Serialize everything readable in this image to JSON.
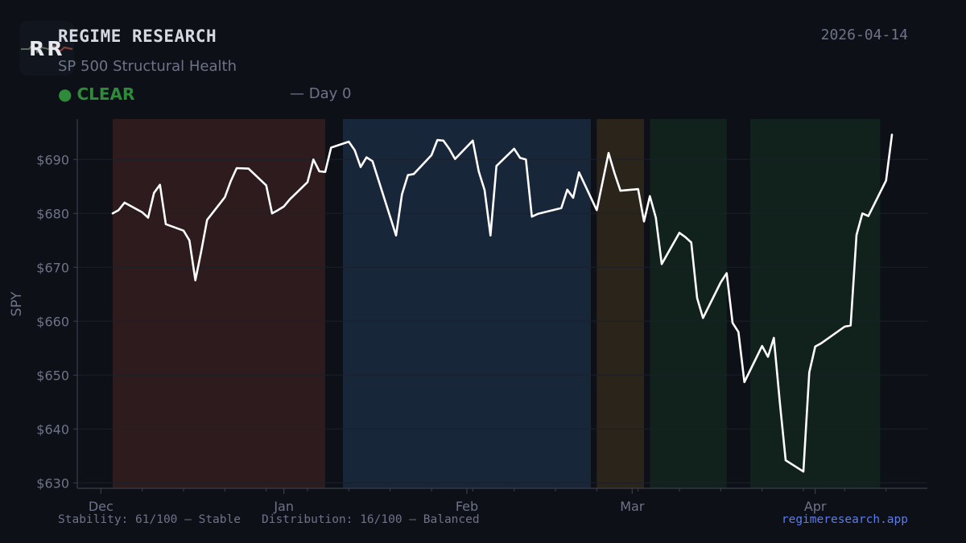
{
  "header": {
    "logo_text": "RR",
    "brand": "REGIME RESEARCH",
    "date": "2026-04-14",
    "subtitle": "SP 500 Structural Health",
    "status_dot": "●",
    "status_label": "CLEAR",
    "status_color": "#2e8b39",
    "day_info": "— Day 0"
  },
  "footer": {
    "stability": "Stability: 61/100 — Stable",
    "distribution": "Distribution: 16/100 — Balanced",
    "website": "regimeresearch.app"
  },
  "chart_data": {
    "type": "line",
    "ylabel": "SPY",
    "xlabel": "",
    "title": "",
    "ylim": [
      629,
      697.5
    ],
    "yticks": [
      630,
      640,
      650,
      660,
      670,
      680,
      690
    ],
    "ytick_prefix": "$",
    "xlim": [
      "2025-11-27",
      "2026-04-20"
    ],
    "xticks": [
      {
        "label": "Dec",
        "date": "2025-12-01"
      },
      {
        "label": "Jan",
        "date": "2026-01-01"
      },
      {
        "label": "Feb",
        "date": "2026-02-01"
      },
      {
        "label": "Mar",
        "date": "2026-03-01"
      },
      {
        "label": "Apr",
        "date": "2026-04-01"
      }
    ],
    "minor_xticks": [
      "2025-12-08",
      "2025-12-15",
      "2025-12-22",
      "2025-12-29",
      "2026-01-05",
      "2026-01-12",
      "2026-01-19",
      "2026-01-26",
      "2026-02-02",
      "2026-02-09",
      "2026-02-16",
      "2026-02-23",
      "2026-03-02",
      "2026-03-09",
      "2026-03-16",
      "2026-03-23",
      "2026-03-30",
      "2026-04-06",
      "2026-04-13"
    ],
    "grid": true,
    "line_color": "#ffffff",
    "regimes": [
      {
        "start": "2025-12-03",
        "end": "2026-01-08",
        "color": "#2d1b1e"
      },
      {
        "start": "2026-01-11",
        "end": "2026-02-22",
        "color": "#18263a"
      },
      {
        "start": "2026-02-23",
        "end": "2026-03-03",
        "color": "#2b241b"
      },
      {
        "start": "2026-03-04",
        "end": "2026-03-17",
        "color": "#11221d"
      },
      {
        "start": "2026-03-21",
        "end": "2026-04-12",
        "color": "#11221d"
      }
    ],
    "series": [
      {
        "points": [
          [
            "2025-12-03",
            680.0
          ],
          [
            "2025-12-04",
            680.6
          ],
          [
            "2025-12-05",
            682.0
          ],
          [
            "2025-12-08",
            680.2
          ],
          [
            "2025-12-09",
            679.2
          ],
          [
            "2025-12-10",
            683.8
          ],
          [
            "2025-12-11",
            685.3
          ],
          [
            "2025-12-12",
            678.0
          ],
          [
            "2025-12-15",
            676.8
          ],
          [
            "2025-12-16",
            675.0
          ],
          [
            "2025-12-17",
            667.6
          ],
          [
            "2025-12-18",
            673.0
          ],
          [
            "2025-12-19",
            678.8
          ],
          [
            "2025-12-22",
            683.0
          ],
          [
            "2025-12-23",
            686.0
          ],
          [
            "2025-12-24",
            688.4
          ],
          [
            "2025-12-26",
            688.3
          ],
          [
            "2025-12-29",
            685.2
          ],
          [
            "2025-12-30",
            680.0
          ],
          [
            "2025-12-31",
            680.6
          ],
          [
            "2026-01-01",
            681.3
          ],
          [
            "2026-01-02",
            682.6
          ],
          [
            "2026-01-05",
            685.8
          ],
          [
            "2026-01-06",
            690.0
          ],
          [
            "2026-01-07",
            687.8
          ],
          [
            "2026-01-08",
            687.7
          ],
          [
            "2026-01-09",
            692.2
          ],
          [
            "2026-01-12",
            693.3
          ],
          [
            "2026-01-13",
            691.7
          ],
          [
            "2026-01-14",
            688.6
          ],
          [
            "2026-01-15",
            690.4
          ],
          [
            "2026-01-16",
            689.7
          ],
          [
            "2026-01-20",
            675.9
          ],
          [
            "2026-01-21",
            683.5
          ],
          [
            "2026-01-22",
            687.1
          ],
          [
            "2026-01-23",
            687.3
          ],
          [
            "2026-01-26",
            690.8
          ],
          [
            "2026-01-27",
            693.6
          ],
          [
            "2026-01-28",
            693.5
          ],
          [
            "2026-01-29",
            692.0
          ],
          [
            "2026-01-30",
            690.1
          ],
          [
            "2026-02-02",
            693.5
          ],
          [
            "2026-02-03",
            687.8
          ],
          [
            "2026-02-04",
            684.3
          ],
          [
            "2026-02-05",
            675.9
          ],
          [
            "2026-02-06",
            688.8
          ],
          [
            "2026-02-09",
            692.0
          ],
          [
            "2026-02-10",
            690.3
          ],
          [
            "2026-02-11",
            690.0
          ],
          [
            "2026-02-12",
            679.4
          ],
          [
            "2026-02-13",
            679.9
          ],
          [
            "2026-02-17",
            681.0
          ],
          [
            "2026-02-18",
            684.4
          ],
          [
            "2026-02-19",
            682.9
          ],
          [
            "2026-02-20",
            687.6
          ],
          [
            "2026-02-23",
            680.6
          ],
          [
            "2026-02-25",
            691.2
          ],
          [
            "2026-02-26",
            687.5
          ],
          [
            "2026-02-27",
            684.2
          ],
          [
            "2026-03-02",
            684.5
          ],
          [
            "2026-03-03",
            678.5
          ],
          [
            "2026-03-04",
            683.2
          ],
          [
            "2026-03-05",
            679.2
          ],
          [
            "2026-03-06",
            670.6
          ],
          [
            "2026-03-09",
            676.4
          ],
          [
            "2026-03-10",
            675.6
          ],
          [
            "2026-03-11",
            674.6
          ],
          [
            "2026-03-12",
            664.3
          ],
          [
            "2026-03-13",
            660.6
          ],
          [
            "2026-03-16",
            667.2
          ],
          [
            "2026-03-17",
            668.9
          ],
          [
            "2026-03-18",
            659.7
          ],
          [
            "2026-03-19",
            658.0
          ],
          [
            "2026-03-20",
            648.7
          ],
          [
            "2026-03-23",
            655.4
          ],
          [
            "2026-03-24",
            653.4
          ],
          [
            "2026-03-25",
            656.9
          ],
          [
            "2026-03-26",
            645.0
          ],
          [
            "2026-03-27",
            634.2
          ],
          [
            "2026-03-30",
            632.1
          ],
          [
            "2026-03-31",
            650.5
          ],
          [
            "2026-04-01",
            655.3
          ],
          [
            "2026-04-02",
            655.9
          ],
          [
            "2026-04-06",
            659.0
          ],
          [
            "2026-04-07",
            659.2
          ],
          [
            "2026-04-08",
            676.0
          ],
          [
            "2026-04-09",
            680.0
          ],
          [
            "2026-04-10",
            679.5
          ],
          [
            "2026-04-13",
            686.1
          ],
          [
            "2026-04-14",
            694.6
          ]
        ]
      }
    ]
  }
}
